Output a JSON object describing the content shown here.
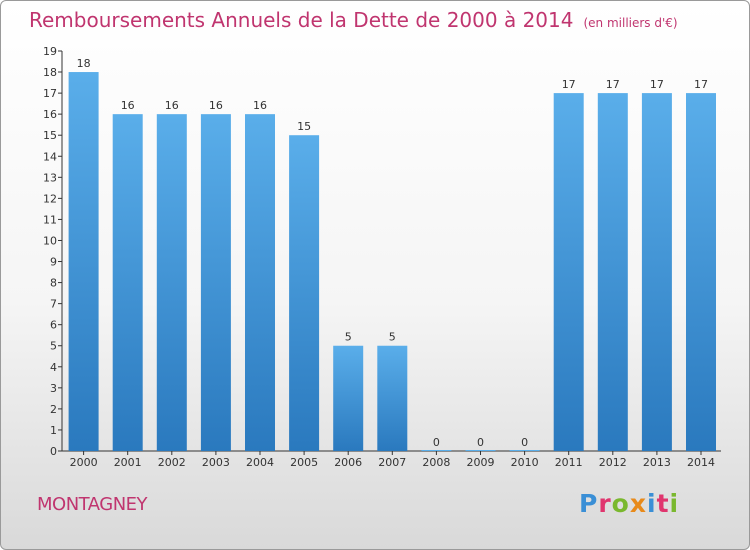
{
  "chart_data": {
    "type": "bar",
    "title": "Remboursements Annuels de la Dette de 2000 à 2014",
    "subtitle": "(en milliers d'€)",
    "categories": [
      "2000",
      "2001",
      "2002",
      "2003",
      "2004",
      "2005",
      "2006",
      "2007",
      "2008",
      "2009",
      "2010",
      "2011",
      "2012",
      "2013",
      "2014"
    ],
    "values": [
      18,
      16,
      16,
      16,
      16,
      15,
      5,
      5,
      0,
      0,
      0,
      17,
      17,
      17,
      17
    ],
    "ylim": [
      0,
      19
    ],
    "yticks": [
      0,
      1,
      2,
      3,
      4,
      5,
      6,
      7,
      8,
      9,
      10,
      11,
      12,
      13,
      14,
      15,
      16,
      17,
      18,
      19
    ],
    "xlabel": "",
    "ylabel": "",
    "grid": false,
    "bar_color": "#3a8fd6"
  },
  "footer": {
    "commune": "MONTAGNEY",
    "brand": "Proxiti"
  },
  "colors": {
    "title": "#c0356f",
    "bar_top": "#5aaeea",
    "bar_bottom": "#2a79be"
  }
}
